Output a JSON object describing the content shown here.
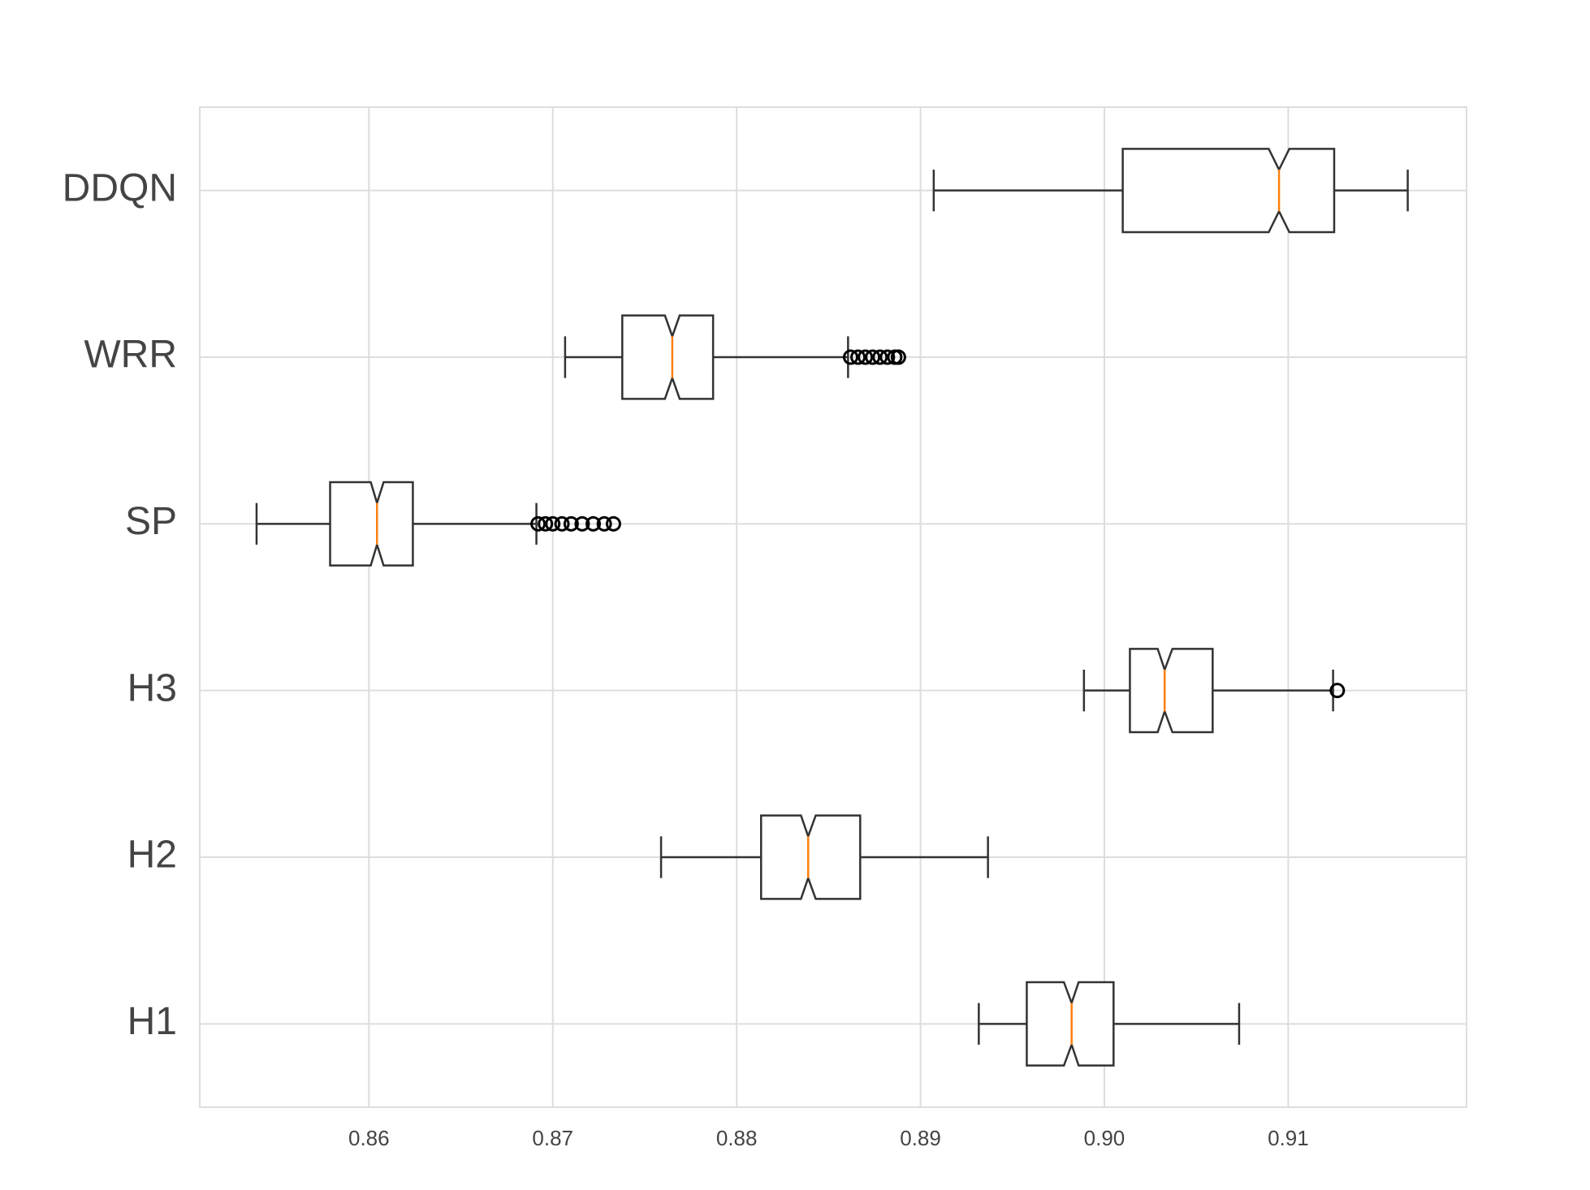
{
  "chart_data": {
    "type": "boxplot",
    "orientation": "horizontal",
    "categories": [
      "H1",
      "H2",
      "H3",
      "SP",
      "WRR",
      "DDQN"
    ],
    "boxes": [
      {
        "whislo": 0.89317,
        "q1": 0.89578,
        "notch_lo": 0.8978,
        "med": 0.89822,
        "notch_hi": 0.8986,
        "q3": 0.9005,
        "whishi": 0.90733,
        "fliers": []
      },
      {
        "whislo": 0.87589,
        "q1": 0.88133,
        "notch_lo": 0.8835,
        "med": 0.88389,
        "notch_hi": 0.8843,
        "q3": 0.88672,
        "whishi": 0.89367,
        "fliers": []
      },
      {
        "whislo": 0.89889,
        "q1": 0.90139,
        "notch_lo": 0.9029,
        "med": 0.90328,
        "notch_hi": 0.9037,
        "q3": 0.90589,
        "whishi": 0.91244,
        "fliers": [
          0.91267
        ]
      },
      {
        "whislo": 0.85389,
        "q1": 0.85789,
        "notch_lo": 0.8601,
        "med": 0.86044,
        "notch_hi": 0.8608,
        "q3": 0.86239,
        "whishi": 0.86911,
        "fliers": [
          0.8692,
          0.8696,
          0.87,
          0.8705,
          0.871,
          0.8716,
          0.8722,
          0.8728,
          0.8733
        ]
      },
      {
        "whislo": 0.87067,
        "q1": 0.87378,
        "notch_lo": 0.8761,
        "med": 0.8765,
        "notch_hi": 0.8769,
        "q3": 0.87872,
        "whishi": 0.88606,
        "fliers": [
          0.8862,
          0.8866,
          0.887,
          0.8874,
          0.8878,
          0.8882,
          0.8886,
          0.8888
        ]
      },
      {
        "whislo": 0.89072,
        "q1": 0.901,
        "notch_lo": 0.90894,
        "med": 0.9095,
        "notch_hi": 0.91006,
        "q3": 0.9125,
        "whishi": 0.9165,
        "fliers": []
      }
    ],
    "color": "#333333",
    "median_color": "#ff7f0e",
    "xlim": [
      0.8508,
      0.9197
    ],
    "xticks": [
      0.86,
      0.87,
      0.88,
      0.89,
      {
        "value": 0.9,
        "label": "0.90"
      },
      0.91
    ],
    "ylim": [
      0.5,
      6.5
    ],
    "grid": true
  }
}
